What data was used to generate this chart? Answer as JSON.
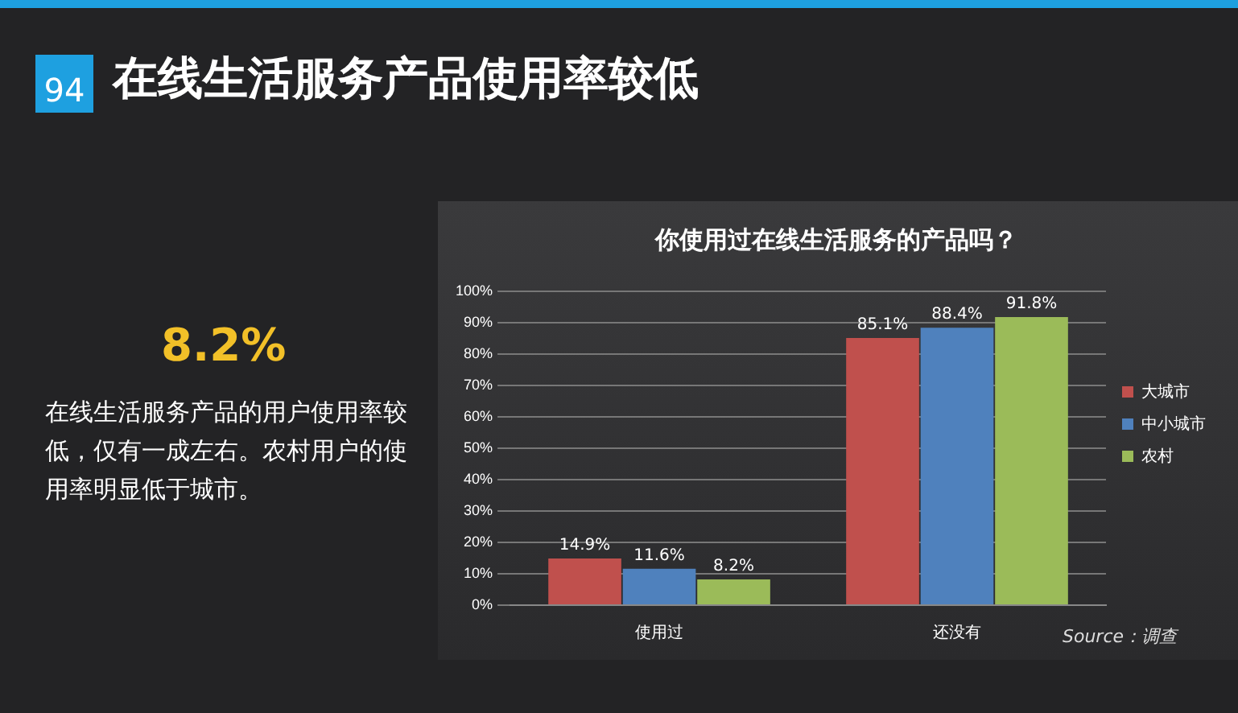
{
  "chart_data": {
    "type": "bar",
    "title": "在线生活服务产品使用率较低",
    "subtitle": "你使用过在线生活服务的产品吗？",
    "categories": [
      "使用过",
      "还没有"
    ],
    "series": [
      {
        "name": "大城市",
        "color": "#c0504d",
        "values": [
          14.9,
          85.1
        ],
        "value_labels": [
          "14.9%",
          "85.1%"
        ]
      },
      {
        "name": "中小城市",
        "color": "#4f81bd",
        "values": [
          11.6,
          88.4
        ],
        "value_labels": [
          "11.6%",
          "88.4%"
        ]
      },
      {
        "name": "农村",
        "color": "#9bbb59",
        "values": [
          8.2,
          91.8
        ],
        "value_labels": [
          "8.2%",
          "91.8%"
        ]
      }
    ],
    "ylim": [
      0,
      100
    ],
    "yticks": [
      {
        "value": 0,
        "label": "0%"
      },
      {
        "value": 10,
        "label": "10%"
      },
      {
        "value": 20,
        "label": "20%"
      },
      {
        "value": 30,
        "label": "30%"
      },
      {
        "value": 40,
        "label": "40%"
      },
      {
        "value": 50,
        "label": "50%"
      },
      {
        "value": 60,
        "label": "60%"
      },
      {
        "value": 70,
        "label": "70%"
      },
      {
        "value": 80,
        "label": "80%"
      },
      {
        "value": 90,
        "label": "90%"
      },
      {
        "value": 100,
        "label": "100%"
      }
    ],
    "grid": "y",
    "legend": "right",
    "annotations": [
      "94",
      "8.2%",
      "在线生活服务产品的用户使用率较低，仅有一成左右。农村用户的使用率明显低于城市。",
      "Source：调查"
    ]
  }
}
